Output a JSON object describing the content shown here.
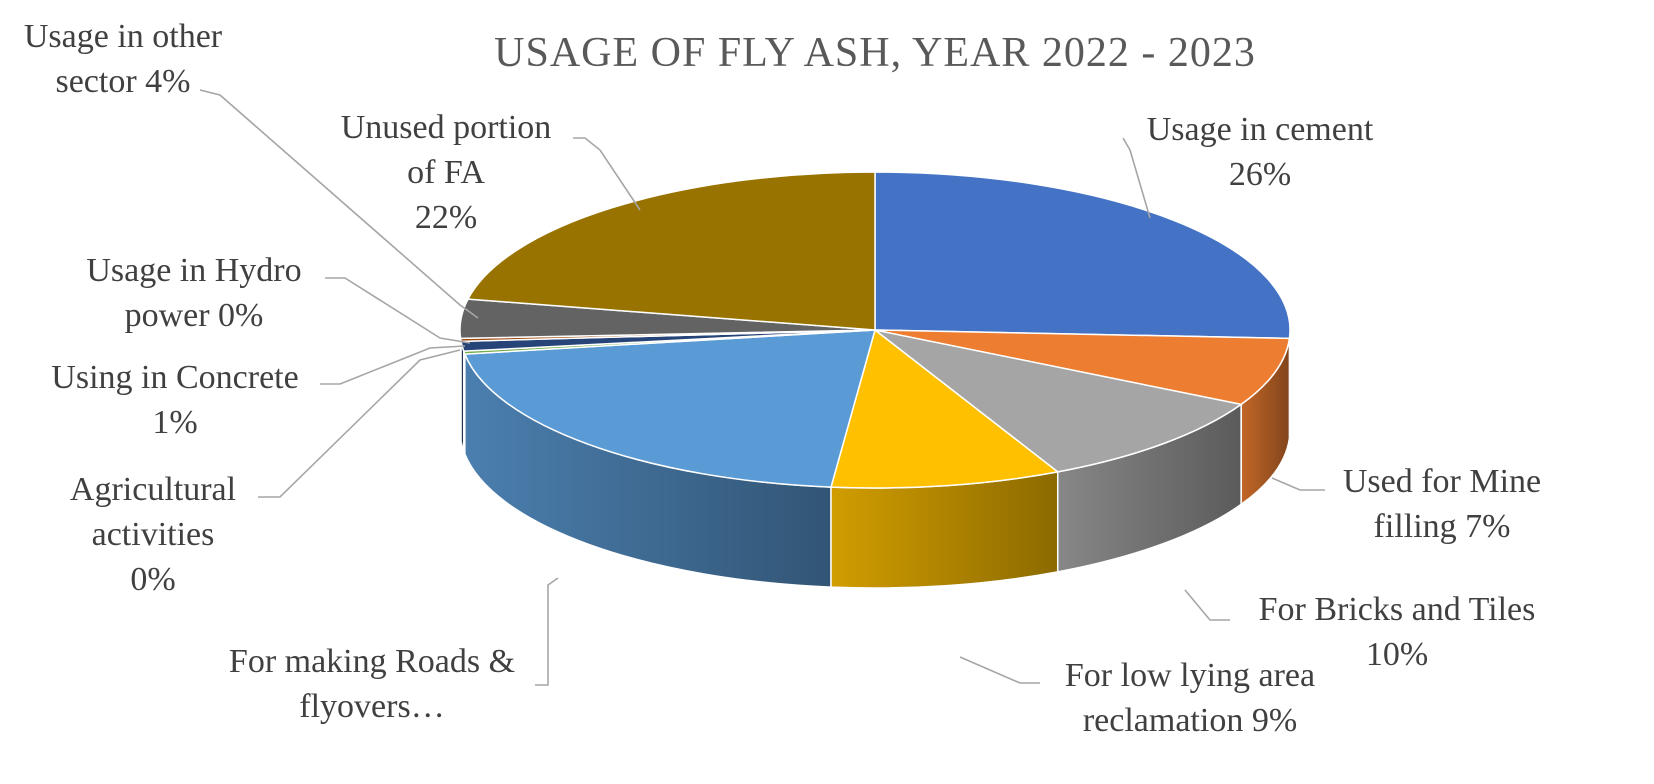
{
  "chart_data": {
    "type": "pie",
    "style": "3d",
    "title": "USAGE OF FLY ASH, YEAR 2022 - 2023",
    "slices": [
      {
        "key": "cement",
        "label_lines": [
          "Usage in cement",
          "26%"
        ],
        "value": 26,
        "color": "#4472c4"
      },
      {
        "key": "mine",
        "label_lines": [
          "Used for Mine",
          "filling 7%"
        ],
        "value": 7,
        "color": "#ed7d31"
      },
      {
        "key": "bricks",
        "label_lines": [
          "For Bricks and Tiles",
          "10%"
        ],
        "value": 10,
        "color": "#a5a5a5"
      },
      {
        "key": "lowlying",
        "label_lines": [
          "For low lying area",
          "reclamation 9%"
        ],
        "value": 9,
        "color": "#ffc000"
      },
      {
        "key": "roads",
        "label_lines": [
          "For making Roads &",
          "flyovers…"
        ],
        "value": 21,
        "color": "#5b9bd5"
      },
      {
        "key": "agri",
        "label_lines": [
          "Agricultural",
          "activities",
          "0%"
        ],
        "value": 0.3,
        "color": "#70ad47"
      },
      {
        "key": "concrete",
        "label_lines": [
          "Using in Concrete",
          "1%"
        ],
        "value": 1,
        "color": "#264478"
      },
      {
        "key": "hydro",
        "label_lines": [
          "Usage in Hydro",
          "power 0%"
        ],
        "value": 0.3,
        "color": "#9e480e"
      },
      {
        "key": "other",
        "label_lines": [
          "Usage in other",
          "sector 4%"
        ],
        "value": 4,
        "color": "#636363"
      },
      {
        "key": "unused",
        "label_lines": [
          "Unused portion",
          "of FA",
          "22%"
        ],
        "value": 22,
        "color": "#997300"
      }
    ]
  }
}
